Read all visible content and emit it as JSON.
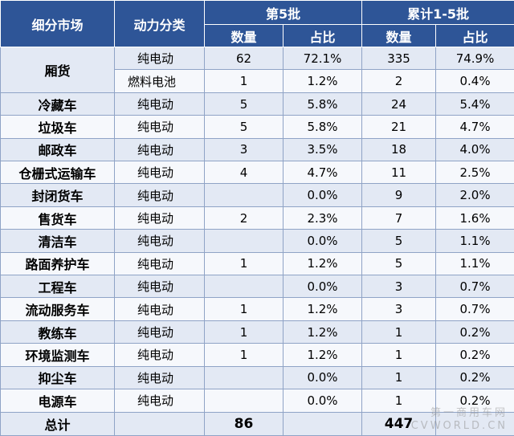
{
  "headers": {
    "market": "细分市场",
    "power": "动力分类",
    "batch5": "第5批",
    "cumulative": "累计1-5批",
    "count": "数量",
    "share": "占比"
  },
  "rows": [
    {
      "market": "厢货",
      "power": "纯电动",
      "c5": "62",
      "p5": "72.1%",
      "cc": "335",
      "pc": "74.9%"
    },
    {
      "market": "",
      "power": "燃料电池",
      "c5": "1",
      "p5": "1.2%",
      "cc": "2",
      "pc": "0.4%"
    },
    {
      "market": "冷藏车",
      "power": "纯电动",
      "c5": "5",
      "p5": "5.8%",
      "cc": "24",
      "pc": "5.4%"
    },
    {
      "market": "垃圾车",
      "power": "纯电动",
      "c5": "5",
      "p5": "5.8%",
      "cc": "21",
      "pc": "4.7%"
    },
    {
      "market": "邮政车",
      "power": "纯电动",
      "c5": "3",
      "p5": "3.5%",
      "cc": "18",
      "pc": "4.0%"
    },
    {
      "market": "仓栅式运输车",
      "power": "纯电动",
      "c5": "4",
      "p5": "4.7%",
      "cc": "11",
      "pc": "2.5%"
    },
    {
      "market": "封闭货车",
      "power": "纯电动",
      "c5": "",
      "p5": "0.0%",
      "cc": "9",
      "pc": "2.0%"
    },
    {
      "market": "售货车",
      "power": "纯电动",
      "c5": "2",
      "p5": "2.3%",
      "cc": "7",
      "pc": "1.6%"
    },
    {
      "market": "清洁车",
      "power": "纯电动",
      "c5": "",
      "p5": "0.0%",
      "cc": "5",
      "pc": "1.1%"
    },
    {
      "market": "路面养护车",
      "power": "纯电动",
      "c5": "1",
      "p5": "1.2%",
      "cc": "5",
      "pc": "1.1%"
    },
    {
      "market": "工程车",
      "power": "纯电动",
      "c5": "",
      "p5": "0.0%",
      "cc": "3",
      "pc": "0.7%"
    },
    {
      "market": "流动服务车",
      "power": "纯电动",
      "c5": "1",
      "p5": "1.2%",
      "cc": "3",
      "pc": "0.7%"
    },
    {
      "market": "教练车",
      "power": "纯电动",
      "c5": "1",
      "p5": "1.2%",
      "cc": "1",
      "pc": "0.2%"
    },
    {
      "market": "环境监测车",
      "power": "纯电动",
      "c5": "1",
      "p5": "1.2%",
      "cc": "1",
      "pc": "0.2%"
    },
    {
      "market": "抑尘车",
      "power": "纯电动",
      "c5": "",
      "p5": "0.0%",
      "cc": "1",
      "pc": "0.2%"
    },
    {
      "market": "电源车",
      "power": "纯电动",
      "c5": "",
      "p5": "0.0%",
      "cc": "1",
      "pc": "0.2%"
    }
  ],
  "total": {
    "label": "总计",
    "c5": "86",
    "cc": "447"
  },
  "watermark": {
    "line1": "第一商用车网",
    "line2": "CVWORLD.CN"
  }
}
